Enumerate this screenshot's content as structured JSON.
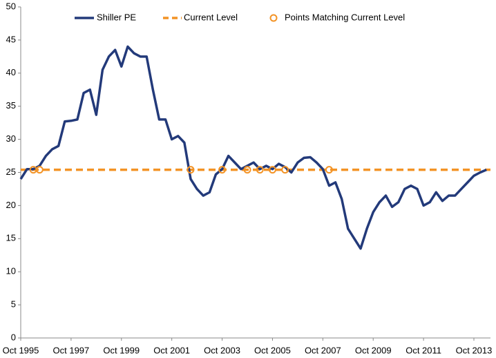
{
  "chart_data": {
    "type": "line",
    "categories": [
      "Oct 1995",
      null,
      null,
      null,
      null,
      null,
      null,
      null,
      "Oct 1997",
      null,
      null,
      null,
      null,
      null,
      null,
      null,
      "Oct 1999",
      null,
      null,
      null,
      null,
      null,
      null,
      null,
      "Oct 2001",
      null,
      null,
      null,
      null,
      null,
      null,
      null,
      "Oct 2003",
      null,
      null,
      null,
      null,
      null,
      null,
      null,
      "Oct 2005",
      null,
      null,
      null,
      null,
      null,
      null,
      null,
      "Oct 2007",
      null,
      null,
      null,
      null,
      null,
      null,
      null,
      "Oct 2009",
      null,
      null,
      null,
      null,
      null,
      null,
      null,
      "Oct 2011",
      null,
      null,
      null,
      null,
      null,
      null,
      null,
      "Oct 2013",
      null,
      null
    ],
    "series": [
      {
        "name": "Shiller PE",
        "color": "#233a7a",
        "values": [
          24,
          25.5,
          25.5,
          26,
          27.5,
          28.5,
          29,
          32.7,
          32.8,
          33,
          37,
          37.5,
          33.7,
          40.5,
          42.5,
          43.5,
          41,
          44,
          43,
          42.5,
          42.5,
          37.5,
          33,
          33,
          30,
          30.5,
          29.5,
          24,
          22.5,
          21.5,
          22,
          24.7,
          25.5,
          27.5,
          26.5,
          25.5,
          26,
          26.5,
          25.5,
          26,
          25.5,
          26.3,
          25.8,
          25,
          26.5,
          27.2,
          27.3,
          26.5,
          25.5,
          23,
          23.5,
          21,
          16.5,
          15,
          13.5,
          16.5,
          19,
          20.5,
          21.5,
          19.8,
          20.5,
          22.5,
          23,
          22.5,
          20,
          20.5,
          22,
          20.7,
          21.5,
          21.5,
          22.5,
          23.5,
          24.5,
          25,
          25.4
        ]
      }
    ],
    "current_level": {
      "name": "Current Level",
      "color": "#f39325",
      "value": 25.4
    },
    "matching_points": {
      "name": "Points Matching Current Level",
      "color": "#f39325",
      "values": [
        null,
        null,
        25.4,
        25.4,
        null,
        null,
        null,
        null,
        null,
        null,
        null,
        null,
        null,
        null,
        null,
        null,
        null,
        null,
        null,
        null,
        null,
        null,
        null,
        null,
        null,
        null,
        null,
        25.4,
        null,
        null,
        null,
        null,
        25.4,
        null,
        null,
        null,
        25.4,
        null,
        25.4,
        null,
        25.4,
        null,
        25.4,
        null,
        null,
        null,
        null,
        null,
        null,
        25.4,
        null,
        null,
        null,
        null,
        null,
        null,
        null,
        null,
        null,
        null,
        null,
        null,
        null,
        null,
        null,
        null,
        null,
        null,
        null,
        null,
        null,
        null,
        null,
        null,
        null
      ]
    },
    "ylim": [
      0,
      50
    ],
    "yticks": [
      0,
      5,
      10,
      15,
      20,
      25,
      30,
      35,
      40,
      45,
      50
    ]
  }
}
